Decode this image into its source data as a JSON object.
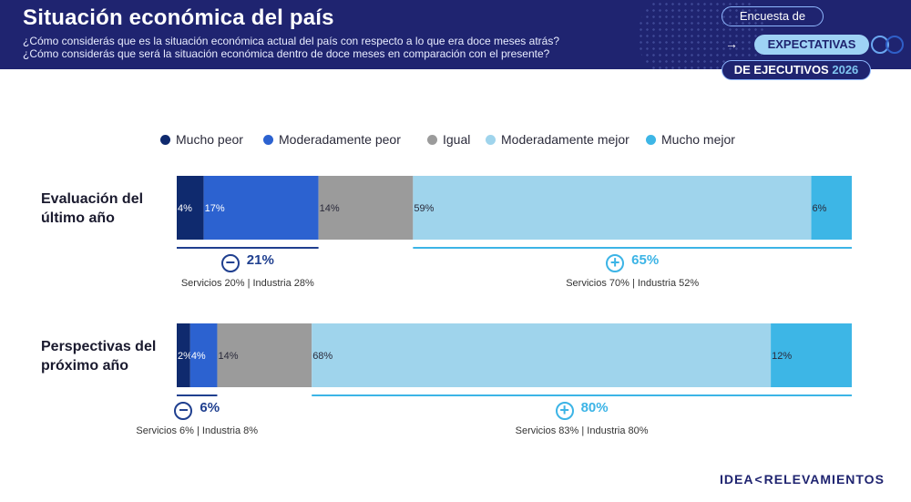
{
  "header": {
    "title": "Situación económica del país",
    "subtitle_1": "¿Cómo considerás que es la situación económica actual del país con respecto a lo que era doce meses atrás?",
    "subtitle_2": "¿Cómo considerás que será la situación económica dentro de doce meses en comparación con el presente?",
    "badge_1": "Encuesta de",
    "badge_2": "EXPECTATIVAS",
    "badge_3_text": "DE EJECUTIVOS",
    "badge_3_year": "2026",
    "arrow_glyph": "→"
  },
  "chart_data": {
    "type": "bar",
    "orientation": "horizontal-stacked-100",
    "legend_position": "top",
    "categories": [
      "Evaluación del último año",
      "Perspectivas del próximo año"
    ],
    "category_lines": [
      [
        "Evaluación del",
        "último año"
      ],
      [
        "Perspectivas del",
        "próximo año"
      ]
    ],
    "series": [
      {
        "name": "Mucho peor",
        "color": "#0f2a6e",
        "values": [
          4,
          2
        ]
      },
      {
        "name": "Moderadamente peor",
        "color": "#2c62d0",
        "values": [
          17,
          4
        ]
      },
      {
        "name": "Igual",
        "color": "#9b9b9b",
        "values": [
          14,
          14
        ]
      },
      {
        "name": "Moderadamente mejor",
        "color": "#9fd4ec",
        "values": [
          59,
          68
        ]
      },
      {
        "name": "Mucho mejor",
        "color": "#3db6e6",
        "values": [
          6,
          12
        ]
      }
    ],
    "data_labels": [
      [
        "4%",
        "17%",
        "14%",
        "59%",
        "6%"
      ],
      [
        "2%",
        "4%",
        "14%",
        "68%",
        "12%"
      ]
    ],
    "summaries": [
      {
        "negative": {
          "sign": "−",
          "value": "21%",
          "detail": "Servicios 20% | Industria 28%"
        },
        "positive": {
          "sign": "+",
          "value": "65%",
          "detail": "Servicios 70% | Industria 52%"
        }
      },
      {
        "negative": {
          "sign": "−",
          "value": "6%",
          "detail": "Servicios 6% | Industria 8%"
        },
        "positive": {
          "sign": "+",
          "value": "80%",
          "detail": "Servicios 83% | Industria 80%"
        }
      }
    ]
  },
  "brand": {
    "part_1": "IDEA",
    "chevron": "<",
    "part_2": "RELEVAMIENTOS"
  }
}
